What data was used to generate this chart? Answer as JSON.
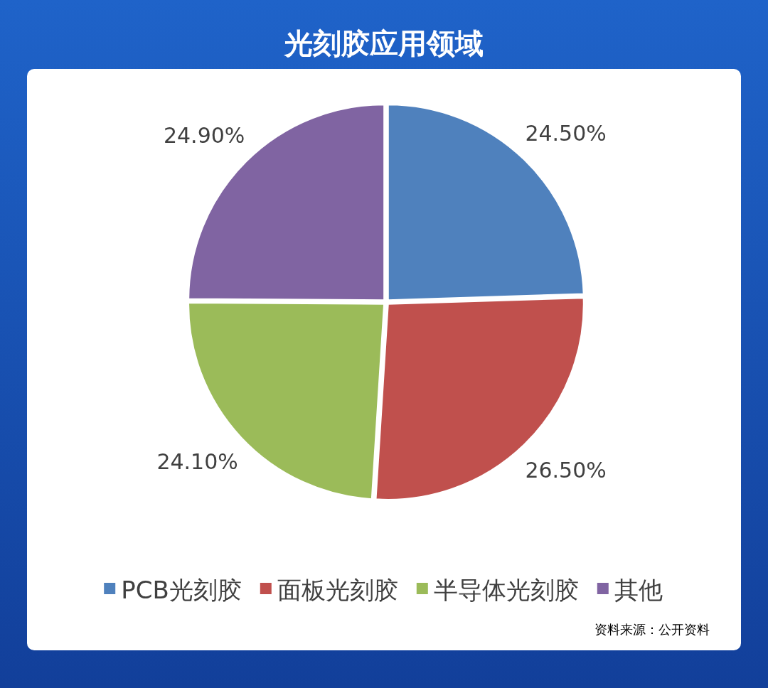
{
  "chart_data": {
    "type": "pie",
    "title": "光刻胶应用领域",
    "categories": [
      "PCB光刻胶",
      "面板光刻胶",
      "半导体光刻胶",
      "其他"
    ],
    "values": [
      24.5,
      26.5,
      24.1,
      24.9
    ],
    "colors": [
      "#4f81bd",
      "#c0504d",
      "#9bbb59",
      "#8064a2"
    ],
    "value_labels": [
      "24.50%",
      "26.50%",
      "24.10%",
      "24.90%"
    ],
    "legend": "bottom",
    "annotations": [
      "资料来源：公开资料"
    ]
  }
}
